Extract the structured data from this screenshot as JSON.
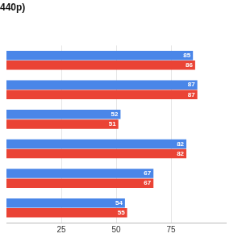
{
  "chart_data": {
    "type": "bar",
    "title": "440p)",
    "orientation": "horizontal",
    "categories": [
      null,
      null,
      null,
      null,
      null,
      null
    ],
    "series": [
      {
        "color": "#4a86e8",
        "values": [
          85,
          87,
          52,
          82,
          67,
          54
        ]
      },
      {
        "color": "#ea4335",
        "values": [
          86,
          87,
          51,
          82,
          67,
          55
        ]
      }
    ],
    "xlim": [
      0,
      100
    ],
    "xticks": [
      25,
      50,
      75
    ],
    "grid": true,
    "data_labels": true,
    "tick_labels": "x"
  }
}
